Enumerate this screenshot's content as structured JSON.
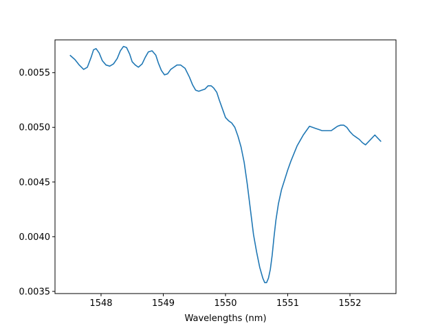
{
  "chart_data": {
    "type": "line",
    "title": "",
    "xlabel": "Wavelengths (nm)",
    "ylabel": "",
    "xlim": [
      1547.26,
      1552.74
    ],
    "ylim": [
      0.00348,
      0.0058
    ],
    "xticks": [
      1548,
      1549,
      1550,
      1551,
      1552
    ],
    "xtick_labels": [
      "1548",
      "1549",
      "1550",
      "1551",
      "1552"
    ],
    "yticks": [
      0.0035,
      0.004,
      0.0045,
      0.005,
      0.0055
    ],
    "ytick_labels": [
      "0.0035",
      "0.0040",
      "0.0045",
      "0.0050",
      "0.0055"
    ],
    "grid": false,
    "legend": "none",
    "line_color": "#1f77b4",
    "series": [
      {
        "x": [
          1547.5,
          1547.58,
          1547.65,
          1547.72,
          1547.78,
          1547.84,
          1547.88,
          1547.92,
          1547.97,
          1548.02,
          1548.08,
          1548.14,
          1548.2,
          1548.26,
          1548.31,
          1548.36,
          1548.41,
          1548.46,
          1548.5,
          1548.55,
          1548.6,
          1548.66,
          1548.71,
          1548.76,
          1548.82,
          1548.88,
          1548.92,
          1548.97,
          1549.02,
          1549.07,
          1549.12,
          1549.17,
          1549.22,
          1549.28,
          1549.35,
          1549.42,
          1549.47,
          1549.52,
          1549.57,
          1549.62,
          1549.67,
          1549.72,
          1549.77,
          1549.81,
          1549.86,
          1549.9,
          1549.95,
          1550.0,
          1550.05,
          1550.1,
          1550.15,
          1550.2,
          1550.25,
          1550.3,
          1550.35,
          1550.4,
          1550.45,
          1550.5,
          1550.55,
          1550.6,
          1550.63,
          1550.66,
          1550.69,
          1550.72,
          1550.75,
          1550.78,
          1550.81,
          1550.85,
          1550.9,
          1550.95,
          1551.0,
          1551.05,
          1551.1,
          1551.15,
          1551.2,
          1551.25,
          1551.3,
          1551.35,
          1551.4,
          1551.45,
          1551.5,
          1551.55,
          1551.6,
          1551.65,
          1551.7,
          1551.75,
          1551.8,
          1551.85,
          1551.9,
          1551.95,
          1552.0,
          1552.05,
          1552.1,
          1552.15,
          1552.2,
          1552.25,
          1552.3,
          1552.35,
          1552.4,
          1552.45,
          1552.5
        ],
        "values": [
          0.00566,
          0.00562,
          0.00557,
          0.00553,
          0.00555,
          0.00564,
          0.00571,
          0.00572,
          0.00568,
          0.00561,
          0.00557,
          0.00556,
          0.00558,
          0.00563,
          0.0057,
          0.00574,
          0.00573,
          0.00567,
          0.0056,
          0.00557,
          0.00555,
          0.00558,
          0.00564,
          0.00569,
          0.0057,
          0.00566,
          0.00559,
          0.00552,
          0.00548,
          0.00549,
          0.00553,
          0.00555,
          0.00557,
          0.00557,
          0.00554,
          0.00546,
          0.00539,
          0.00534,
          0.00533,
          0.00534,
          0.00535,
          0.00538,
          0.00538,
          0.00536,
          0.00532,
          0.00525,
          0.00517,
          0.00509,
          0.00506,
          0.00504,
          0.005,
          0.00492,
          0.00482,
          0.00468,
          0.00448,
          0.00425,
          0.00402,
          0.00386,
          0.00372,
          0.00362,
          0.00358,
          0.00358,
          0.00362,
          0.0037,
          0.00383,
          0.004,
          0.00415,
          0.0043,
          0.00443,
          0.00452,
          0.00461,
          0.00469,
          0.00476,
          0.00483,
          0.00488,
          0.00493,
          0.00497,
          0.00501,
          0.005,
          0.00499,
          0.00498,
          0.00497,
          0.00497,
          0.00497,
          0.00497,
          0.00499,
          0.00501,
          0.00502,
          0.00502,
          0.005,
          0.00496,
          0.00493,
          0.00491,
          0.00489,
          0.00486,
          0.00484,
          0.00487,
          0.0049,
          0.00493,
          0.0049,
          0.00487
        ]
      }
    ]
  }
}
